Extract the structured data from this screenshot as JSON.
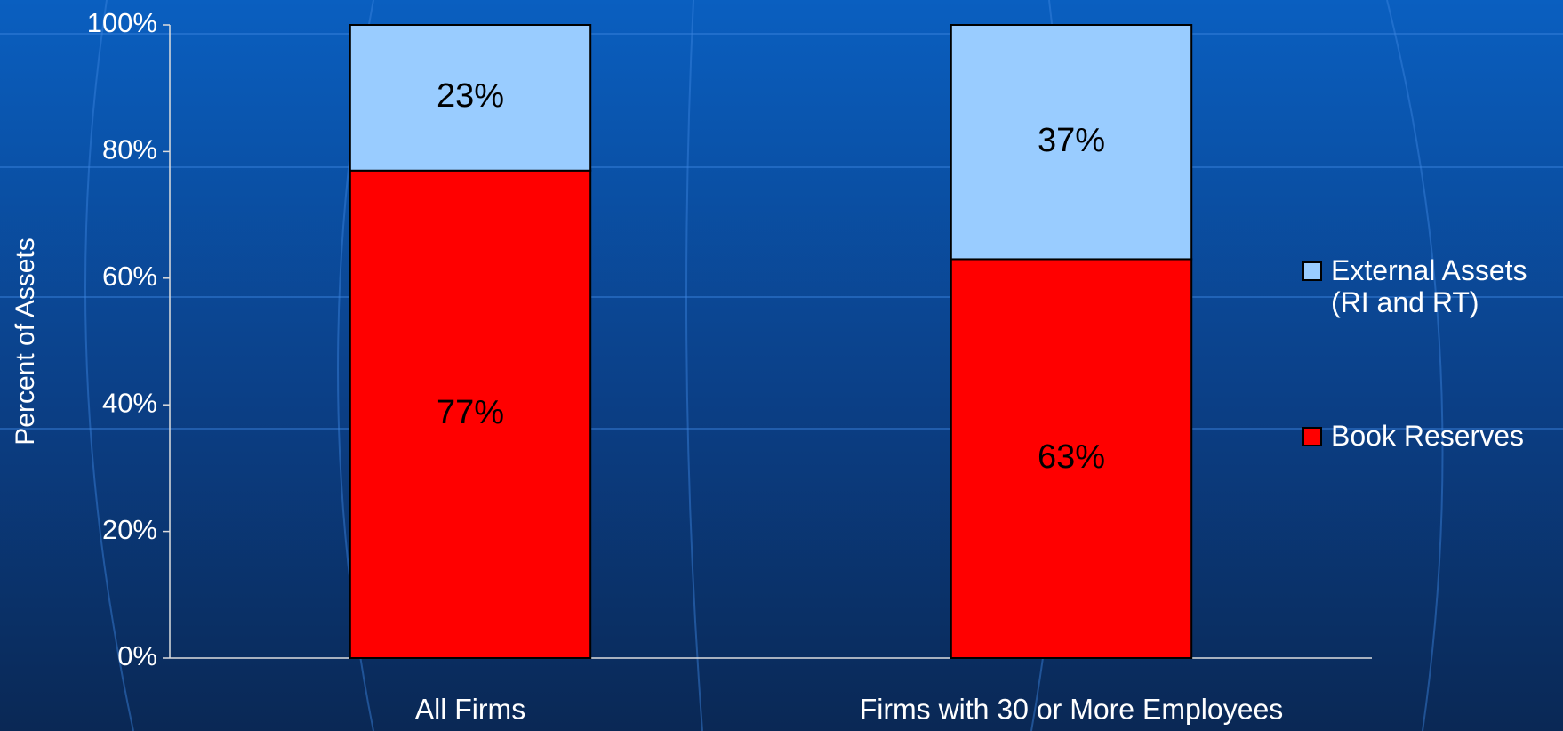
{
  "chart_data": {
    "type": "stacked_bar",
    "y_label": "Percent of Assets",
    "categories": [
      "All Firms",
      "Firms with 30 or More Employees"
    ],
    "series": [
      {
        "name": "Book Reserves",
        "color": "#ff0000",
        "values": [
          77,
          63
        ],
        "value_labels": [
          "77%",
          "63%"
        ]
      },
      {
        "name": "External Assets (RI and RT)",
        "color": "#99ccff",
        "values": [
          23,
          37
        ],
        "value_labels": [
          "23%",
          "37%"
        ]
      }
    ],
    "ylim": [
      0,
      100
    ],
    "yticks": [
      {
        "value": 0,
        "label": "0%"
      },
      {
        "value": 20,
        "label": "20%"
      },
      {
        "value": 40,
        "label": "40%"
      },
      {
        "value": 60,
        "label": "60%"
      },
      {
        "value": 80,
        "label": "80%"
      },
      {
        "value": 100,
        "label": "100%"
      }
    ],
    "grid": false,
    "legend": "right"
  }
}
